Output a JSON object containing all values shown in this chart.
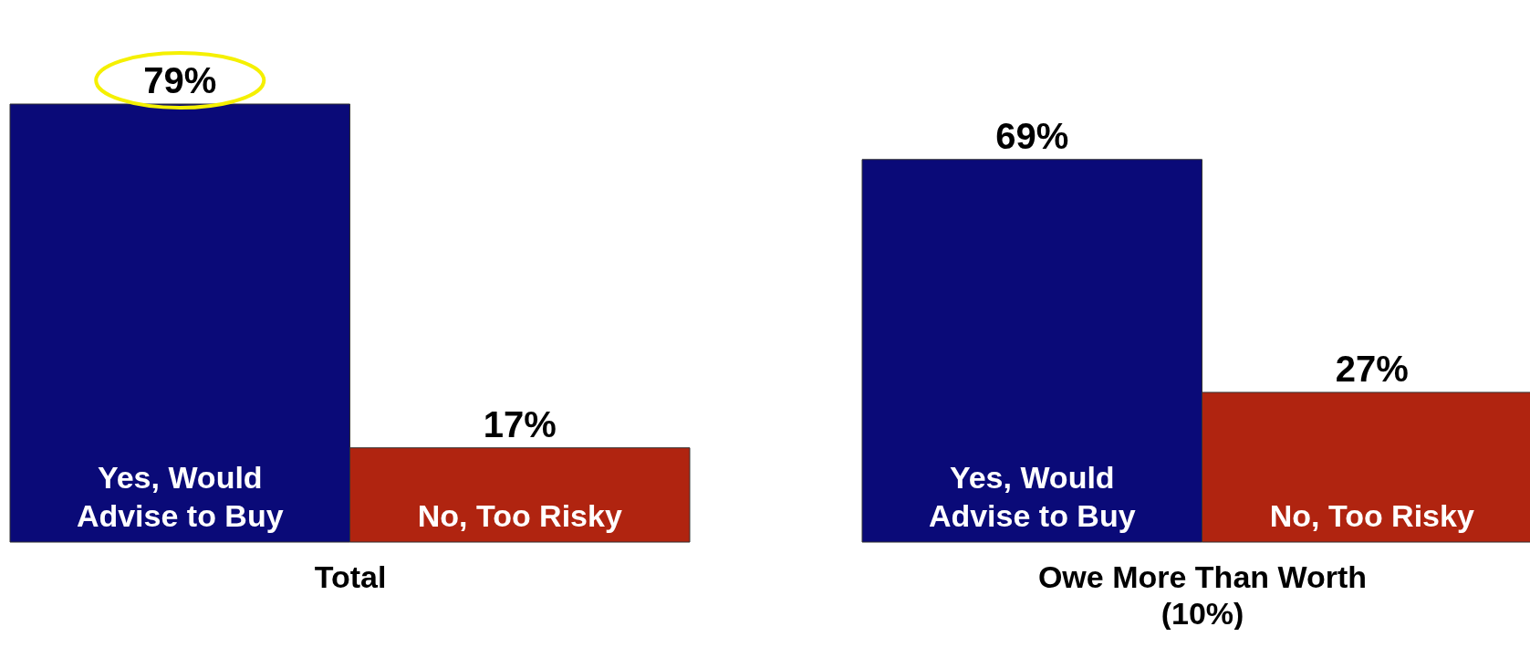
{
  "chart_data": [
    {
      "type": "bar",
      "xlabel": "Total",
      "categories": [
        "Yes, Would Advise to Buy",
        "No, Too Risky"
      ],
      "values": [
        79,
        17
      ],
      "value_labels": [
        "79%",
        "17%"
      ],
      "colors": [
        "#0a0a78",
        "#b02410"
      ],
      "tick_labels": false
    },
    {
      "type": "bar",
      "xlabel": "Owe More Than Worth\n(10%)",
      "categories": [
        "Yes, Would Advise to Buy",
        "No, Too Risky"
      ],
      "values": [
        69,
        27
      ],
      "value_labels": [
        "69%",
        "27%"
      ],
      "colors": [
        "#0a0a78",
        "#b02410"
      ],
      "tick_labels": false
    }
  ]
}
